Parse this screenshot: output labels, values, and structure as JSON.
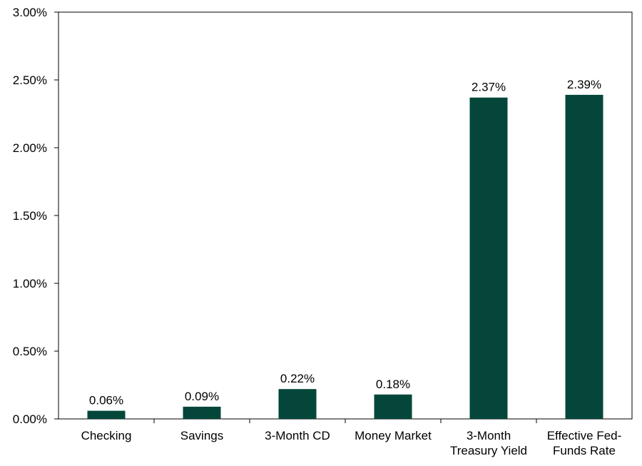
{
  "chart_data": {
    "type": "bar",
    "title": "",
    "xlabel": "",
    "ylabel": "",
    "categories": [
      [
        "Checking"
      ],
      [
        "Savings"
      ],
      [
        "3-Month CD"
      ],
      [
        "Money Market"
      ],
      [
        "3-Month",
        "Treasury Yield"
      ],
      [
        "Effective Fed-",
        "Funds Rate"
      ]
    ],
    "values": [
      0.06,
      0.09,
      0.22,
      0.18,
      2.37,
      2.39
    ],
    "data_labels": [
      "0.06%",
      "0.09%",
      "0.22%",
      "0.18%",
      "2.37%",
      "2.39%"
    ],
    "ylim": [
      0,
      3
    ],
    "yticks": [
      0,
      0.5,
      1,
      1.5,
      2,
      2.5,
      3
    ],
    "ytick_labels": [
      "0.00%",
      "0.50%",
      "1.00%",
      "1.50%",
      "2.00%",
      "2.50%",
      "3.00%"
    ],
    "bar_color": "#04473A",
    "grid": false,
    "legend": "none"
  }
}
